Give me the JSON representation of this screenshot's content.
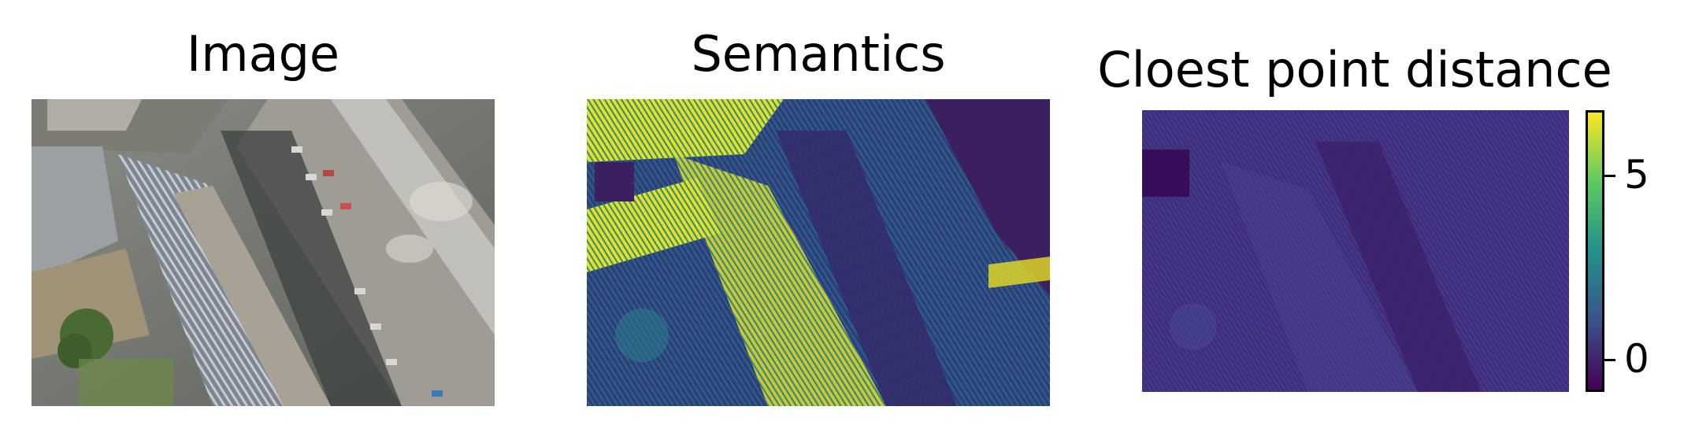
{
  "panels": [
    {
      "title": "Image"
    },
    {
      "title": "Semantics"
    },
    {
      "title": "Cloest point distance"
    }
  ],
  "colorbar": {
    "ticks": [
      "5",
      "0"
    ],
    "colormap": [
      "#440154",
      "#3b528b",
      "#21918c",
      "#5ec962",
      "#fde725"
    ]
  },
  "colors": {
    "semantics_bg": "#2c3d7a",
    "semantics_high": "#f2e51f",
    "distance_bg": "#3f2f80"
  }
}
